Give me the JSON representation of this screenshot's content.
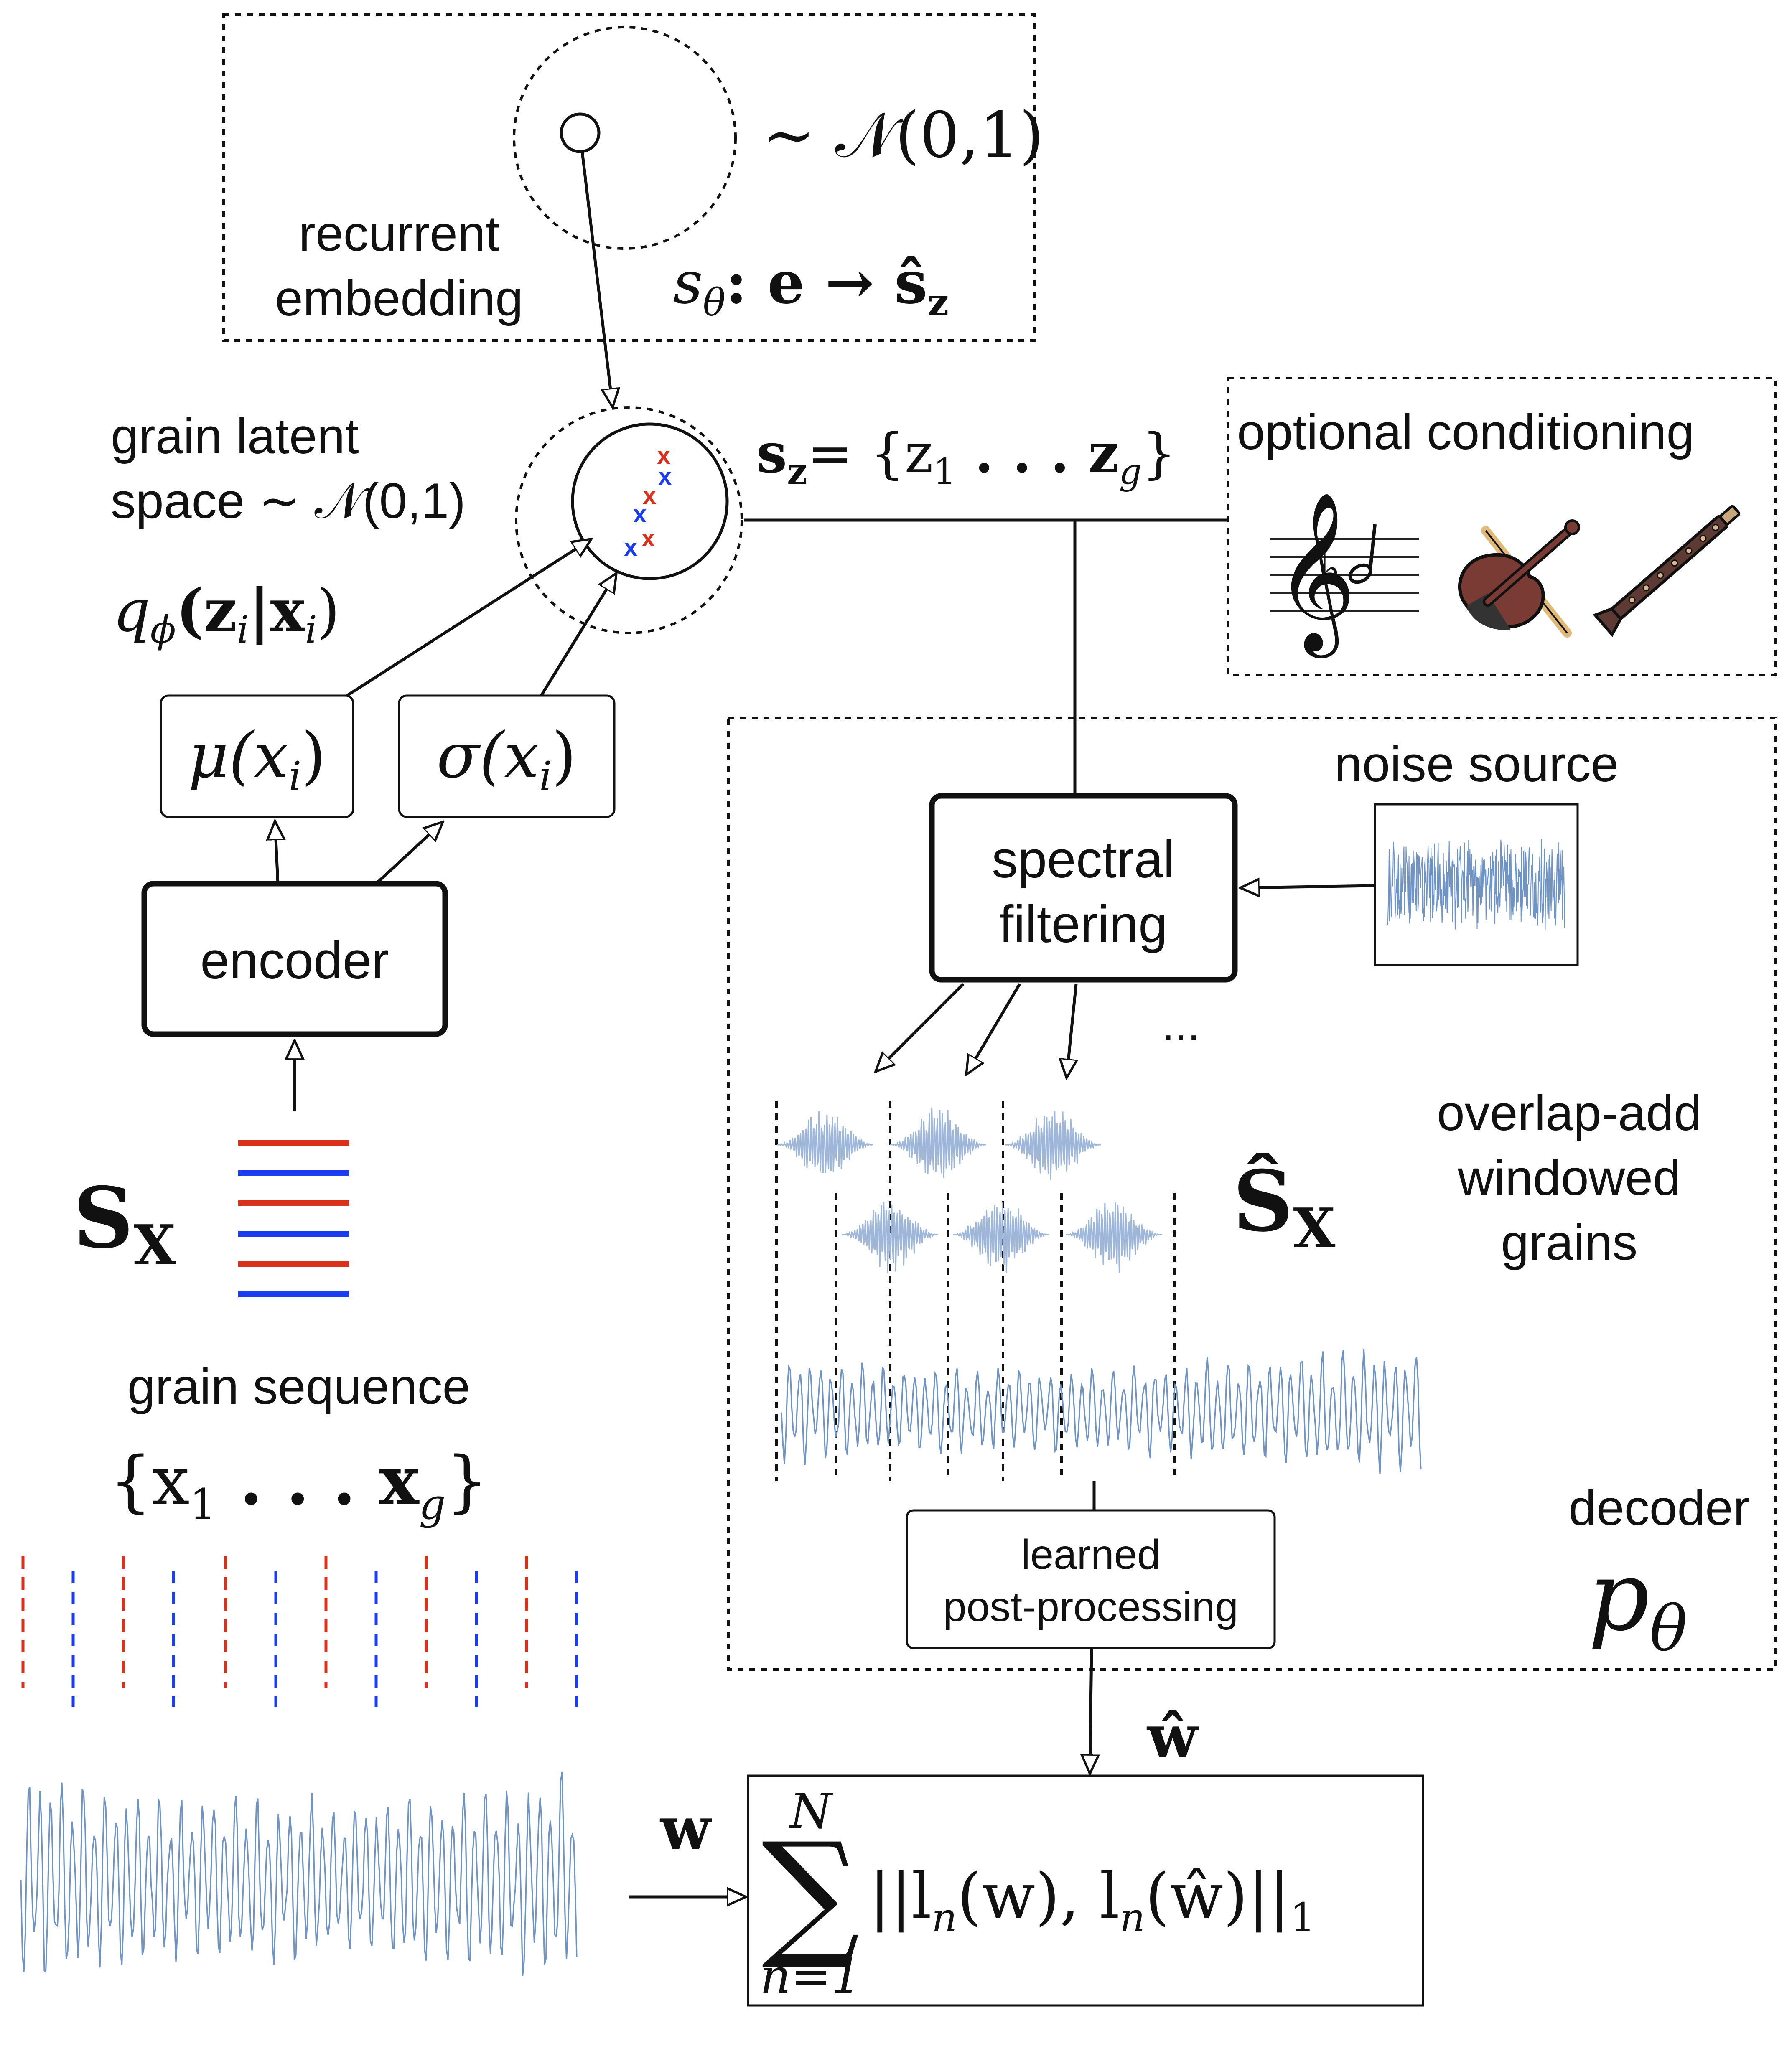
{
  "embedding": {
    "label_line1": "recurrent",
    "label_line2": "embedding",
    "prior": "∼ 𝒩(0,1)",
    "map_lhs": "s",
    "map_sub": "θ",
    "map_rhs": ": e → ŝ",
    "map_rhs_sub": "z"
  },
  "latent": {
    "label_line1": "grain latent",
    "label_line2": "space ∼ 𝒩(0,1)",
    "posterior_q": "q",
    "posterior_sub": "ϕ",
    "posterior_rest": "(z",
    "posterior_i1": "i",
    "posterior_bar": "|x",
    "posterior_i2": "i",
    "posterior_close": ")",
    "sz_lhs": "s",
    "sz_sub": "z",
    "sz_rhs": "= {z",
    "sz_1": "1",
    "sz_dots": " . . . z",
    "sz_g": "g",
    "sz_close": "}"
  },
  "encoder": {
    "mu_label": "μ(x",
    "sigma_label": "σ(x",
    "idx": "i",
    "close": ")",
    "encoder_label": "encoder",
    "sx_main": "S",
    "sx_sub": "X",
    "seq_label": "grain sequence",
    "seq_set_open": "{x",
    "seq_1": "1",
    "seq_dots": " . . . x",
    "seq_g": "g",
    "seq_set_close": "}"
  },
  "conditioning": {
    "title": "optional conditioning",
    "icons": [
      "score-icon",
      "violin-icon",
      "clarinet-icon"
    ]
  },
  "decoder": {
    "noise_label": "noise source",
    "filter_line1": "spectral",
    "filter_line2": "filtering",
    "ellipsis": "...",
    "sx_hat_main": "Ŝ",
    "sx_hat_sub": "X",
    "ola_line1": "overlap-add",
    "ola_line2": "windowed",
    "ola_line3": "grains",
    "post_line1": "learned",
    "post_line2": "post-processing",
    "decoder_label": "decoder",
    "p_main": "p",
    "p_sub": "θ"
  },
  "loss": {
    "w_label": "w",
    "w_hat_label": "ŵ",
    "sum_top": "N",
    "sum_bottom": "n=1",
    "sum_symbol": "∑",
    "formula": "||l",
    "n1": "n",
    "mid": "(w), l",
    "n2": "n",
    "end": "(ŵ)||",
    "one": "1"
  },
  "colors": {
    "red": "#d9311c",
    "blue": "#1c3cf0",
    "wave": "#6f93c4",
    "grain": "#9db6da"
  }
}
